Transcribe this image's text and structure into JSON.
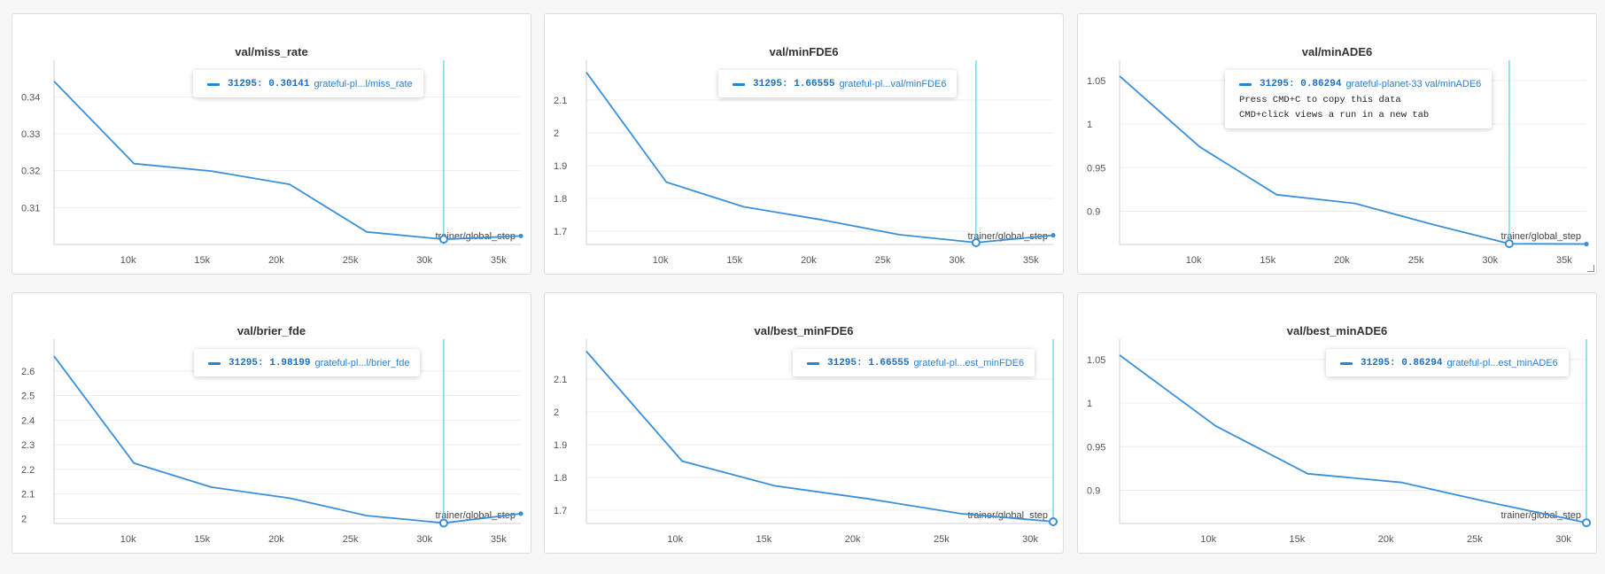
{
  "chart_data": [
    {
      "type": "line",
      "title": "val/miss_rate",
      "xlabel": "trainer/global_step",
      "ylabel": "",
      "x": [
        5000,
        10400,
        15600,
        20900,
        26100,
        31295,
        36500
      ],
      "series": [
        {
          "values": [
            0.3442,
            0.3219,
            0.3199,
            0.3163,
            0.3034,
            0.30141,
            0.3023
          ]
        }
      ],
      "xticks": [
        "10k",
        "15k",
        "20k",
        "25k",
        "30k",
        "35k"
      ],
      "yticks": [
        "0.34",
        "0.33",
        "0.32",
        "0.31"
      ],
      "ylim": [
        0.3,
        0.348
      ],
      "grid": true,
      "tooltip": {
        "step": "31295",
        "value": "0.30141",
        "name": "grateful-pl...l/miss_rate"
      }
    },
    {
      "type": "line",
      "title": "val/minFDE6",
      "xlabel": "trainer/global_step",
      "ylabel": "",
      "x": [
        5000,
        10400,
        15600,
        20900,
        26100,
        31295,
        36500
      ],
      "series": [
        {
          "values": [
            2.185,
            1.85,
            1.775,
            1.735,
            1.69,
            1.66555,
            1.688
          ]
        }
      ],
      "xticks": [
        "10k",
        "15k",
        "20k",
        "25k",
        "30k",
        "35k"
      ],
      "yticks": [
        "2.1",
        "2",
        "1.9",
        "1.8",
        "1.7"
      ],
      "ylim": [
        1.66,
        2.2
      ],
      "grid": true,
      "tooltip": {
        "step": "31295",
        "value": "1.66555",
        "name": "grateful-pl...val/minFDE6"
      }
    },
    {
      "type": "line",
      "title": "val/minADE6",
      "xlabel": "trainer/global_step",
      "ylabel": "",
      "x": [
        5000,
        10400,
        15600,
        20900,
        26100,
        31295,
        36500
      ],
      "series": [
        {
          "values": [
            1.055,
            0.974,
            0.919,
            0.909,
            0.885,
            0.86294,
            0.8625
          ]
        }
      ],
      "xticks": [
        "10k",
        "15k",
        "20k",
        "25k",
        "30k",
        "35k"
      ],
      "yticks": [
        "1.05",
        "1",
        "0.95",
        "0.9"
      ],
      "ylim": [
        0.862,
        1.065
      ],
      "grid": true,
      "tooltip": {
        "step": "31295",
        "value": "0.86294",
        "name": "grateful-planet-33 val/minADE6",
        "hint1": "Press CMD+C to copy this data",
        "hint2": "CMD+click views a run in a new tab"
      }
    },
    {
      "type": "line",
      "title": "val/brier_fde",
      "xlabel": "trainer/global_step",
      "ylabel": "",
      "x": [
        5000,
        10400,
        15600,
        20900,
        26100,
        31295,
        36500
      ],
      "series": [
        {
          "values": [
            2.66,
            2.225,
            2.128,
            2.083,
            2.012,
            1.98199,
            2.02
          ]
        }
      ],
      "xticks": [
        "10k",
        "15k",
        "20k",
        "25k",
        "30k",
        "35k"
      ],
      "yticks": [
        "2.6",
        "2.5",
        "2.4",
        "2.3",
        "2.2",
        "2.1",
        "2"
      ],
      "ylim": [
        1.98,
        2.7
      ],
      "grid": true,
      "tooltip": {
        "step": "31295",
        "value": "1.98199",
        "name": "grateful-pl...l/brier_fde"
      }
    },
    {
      "type": "line",
      "title": "val/best_minFDE6",
      "xlabel": "trainer/global_step",
      "ylabel": "",
      "x": [
        5000,
        10400,
        15600,
        20900,
        26100,
        31295
      ],
      "series": [
        {
          "values": [
            2.185,
            1.85,
            1.775,
            1.735,
            1.69,
            1.66555
          ]
        }
      ],
      "xticks": [
        "10k",
        "15k",
        "20k",
        "25k",
        "30k"
      ],
      "yticks": [
        "2.1",
        "2",
        "1.9",
        "1.8",
        "1.7"
      ],
      "ylim": [
        1.66,
        2.2
      ],
      "grid": true,
      "tooltip": {
        "step": "31295",
        "value": "1.66555",
        "name": "grateful-pl...est_minFDE6"
      }
    },
    {
      "type": "line",
      "title": "val/best_minADE6",
      "xlabel": "trainer/global_step",
      "ylabel": "",
      "x": [
        5000,
        10400,
        15600,
        20900,
        26100,
        31295
      ],
      "series": [
        {
          "values": [
            1.055,
            0.974,
            0.919,
            0.909,
            0.885,
            0.86294
          ]
        }
      ],
      "xticks": [
        "10k",
        "15k",
        "20k",
        "25k",
        "30k"
      ],
      "yticks": [
        "1.05",
        "1",
        "0.95",
        "0.9"
      ],
      "ylim": [
        0.862,
        1.065
      ],
      "grid": true,
      "tooltip": {
        "step": "31295",
        "value": "0.86294",
        "name": "grateful-pl...est_minADE6"
      }
    }
  ],
  "colors": {
    "line": "#3b8fd8",
    "hover": "#4dd3e6",
    "grid": "#ededed",
    "tick": "#555555"
  }
}
